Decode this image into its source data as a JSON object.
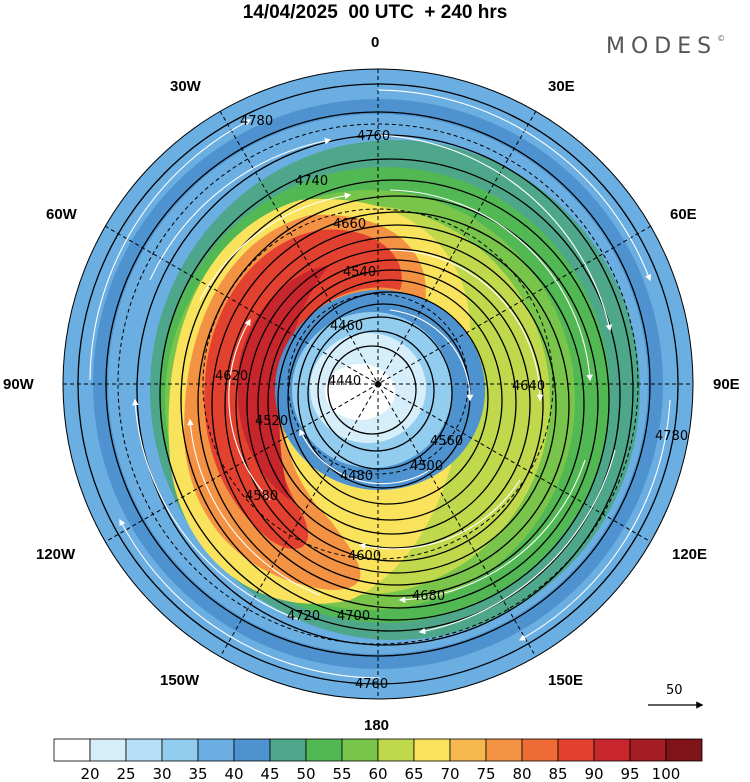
{
  "header": {
    "title": "14/04/2025  00 UTC  + 240 hrs",
    "brand": "MODES"
  },
  "longitude_labels": {
    "n": "0",
    "n30e": "30E",
    "n30w": "30W",
    "e60": "60E",
    "w60": "60W",
    "e90": "90E",
    "w90": "90W",
    "e120": "120E",
    "w120": "120W",
    "s150e": "150E",
    "s150w": "150W",
    "s": "180"
  },
  "contour_labels": [
    "4440",
    "4460",
    "4480",
    "4500",
    "4520",
    "4540",
    "4560",
    "4580",
    "4600",
    "4620",
    "4640",
    "4660",
    "4680",
    "4700",
    "4720",
    "4740",
    "4760",
    "4780"
  ],
  "vector_reference": {
    "value": "50"
  },
  "colorbar": {
    "labels": [
      "20",
      "25",
      "30",
      "35",
      "40",
      "45",
      "50",
      "55",
      "60",
      "65",
      "70",
      "75",
      "80",
      "85",
      "90",
      "95",
      "100"
    ],
    "colors": [
      "#ffffff",
      "#d6eefa",
      "#b6e0f7",
      "#92cdf0",
      "#6aaee2",
      "#4e93cf",
      "#4ea78a",
      "#52b854",
      "#79c44a",
      "#bfd84c",
      "#f9e35c",
      "#f7b850",
      "#f39242",
      "#ee6a37",
      "#e34130",
      "#c8262d",
      "#a51d24",
      "#7f1319"
    ]
  }
}
